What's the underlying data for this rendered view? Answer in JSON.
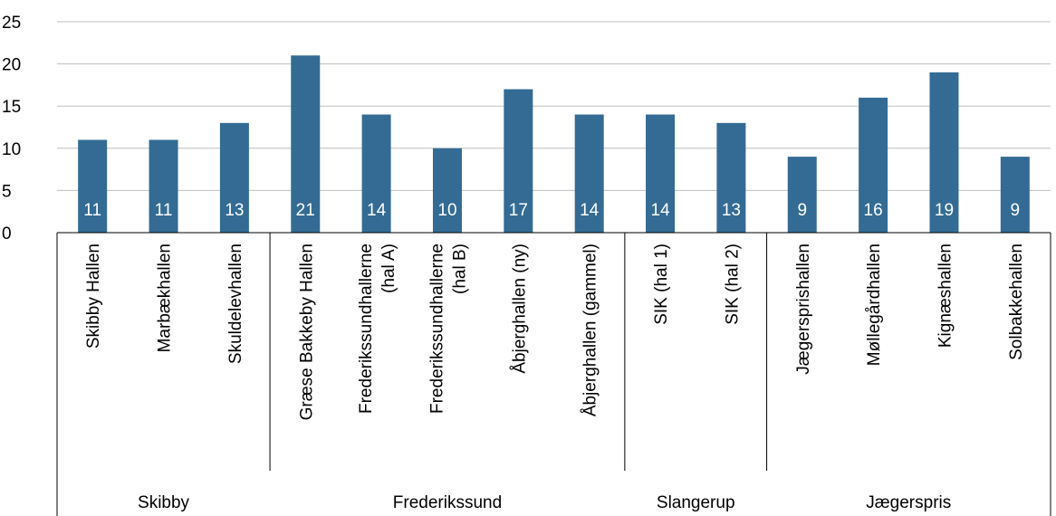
{
  "chart_data": {
    "type": "bar",
    "title": "",
    "xlabel": "",
    "ylabel": "",
    "ylim": [
      0,
      25
    ],
    "yticks": [
      0,
      5,
      10,
      15,
      20,
      25
    ],
    "grid": true,
    "bar_color": "#336B94",
    "grid_color": "#BFBFBF",
    "data_label_color": "#FFFFFF",
    "categories": [
      "Skibby Hallen",
      "Marbækhallen",
      "Skuldelevhallen",
      "Græse Bakkeby Hallen",
      "Frederikssundhallerne (hal A)",
      "Frederikssundhallerne (hal B)",
      "Åbjerghallen (ny)",
      "Åbjerghallen (gammel)",
      "SIK (hal 1)",
      "SIK (hal 2)",
      "Jægersprishallen",
      "Møllegårdhallen",
      "Kignæshallen",
      "Solbakkehallen"
    ],
    "category_label_lines": [
      [
        "Skibby Hallen"
      ],
      [
        "Marbækhallen"
      ],
      [
        "Skuldelevhallen"
      ],
      [
        "Græse Bakkeby Hallen"
      ],
      [
        "Frederikssundhallerne",
        "(hal A)"
      ],
      [
        "Frederikssundhallerne",
        "(hal B)"
      ],
      [
        "Åbjerghallen (ny)"
      ],
      [
        "Åbjerghallen (gammel)"
      ],
      [
        "SIK (hal 1)"
      ],
      [
        "SIK (hal 2)"
      ],
      [
        "Jægersprishallen"
      ],
      [
        "Møllegårdhallen"
      ],
      [
        "Kignæshallen"
      ],
      [
        "Solbakkehallen"
      ]
    ],
    "values": [
      11,
      11,
      13,
      21,
      14,
      10,
      17,
      14,
      14,
      13,
      9,
      16,
      19,
      9
    ],
    "data_labels": [
      "11",
      "11",
      "13",
      "21",
      "14",
      "10",
      "17",
      "14",
      "14",
      "13",
      "9",
      "16",
      "19",
      "9"
    ],
    "groups": [
      {
        "name": "Skibby",
        "count": 3
      },
      {
        "name": "Frederikssund",
        "count": 5
      },
      {
        "name": "Slangerup",
        "count": 2
      },
      {
        "name": "Jægerspris",
        "count": 4
      }
    ]
  }
}
